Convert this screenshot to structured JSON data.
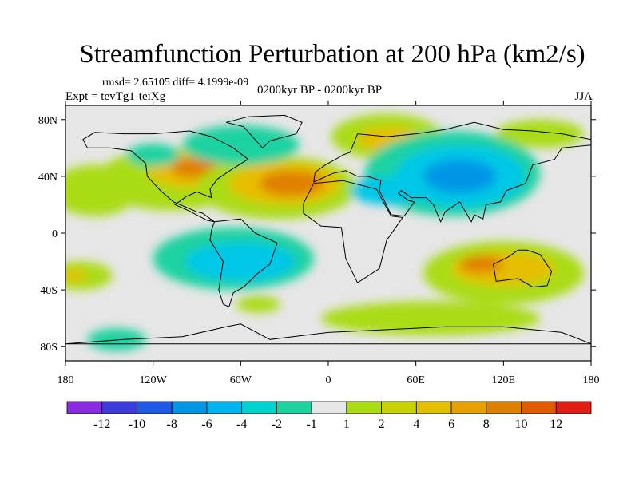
{
  "header": {
    "title": "Streamfunction Perturbation at 200 hPa (km2/s)",
    "stats": "rmsd= 2.65105 diff= 4.1999e-09",
    "period": "0200kyr BP - 0200kyr BP",
    "experiment": "Expt = tevTg1-teiXg",
    "season": "JJA"
  },
  "map": {
    "lon_range": [
      -180,
      180
    ],
    "lat_range": [
      -90,
      90
    ],
    "lon_ticks": [
      {
        "value": -180,
        "label": "180"
      },
      {
        "value": -120,
        "label": "120W"
      },
      {
        "value": -60,
        "label": "60W"
      },
      {
        "value": 0,
        "label": "0"
      },
      {
        "value": 60,
        "label": "60E"
      },
      {
        "value": 120,
        "label": "120E"
      },
      {
        "value": 180,
        "label": "180"
      }
    ],
    "lat_ticks": [
      {
        "value": 80,
        "label": "80N"
      },
      {
        "value": 40,
        "label": "40N"
      },
      {
        "value": 0,
        "label": "0"
      },
      {
        "value": -40,
        "label": "40S"
      },
      {
        "value": -80,
        "label": "80S"
      }
    ],
    "background_color": "#e6e6e6",
    "field_blobs": [
      {
        "lon": -108,
        "lat": 38,
        "rlon": 50,
        "rlat": 22,
        "color": "#aadc14"
      },
      {
        "lon": -95,
        "lat": 44,
        "rlon": 28,
        "rlat": 12,
        "color": "#e6be00"
      },
      {
        "lon": -92,
        "lat": 46,
        "rlon": 16,
        "rlat": 7,
        "color": "#e08000"
      },
      {
        "lon": -35,
        "lat": 32,
        "rlon": 55,
        "rlat": 22,
        "color": "#aadc14"
      },
      {
        "lon": -30,
        "lat": 35,
        "rlon": 38,
        "rlat": 15,
        "color": "#e6be00"
      },
      {
        "lon": -25,
        "lat": 35,
        "rlon": 22,
        "rlat": 9,
        "color": "#e08000"
      },
      {
        "lon": -160,
        "lat": 30,
        "rlon": 30,
        "rlat": 18,
        "color": "#aadc14"
      },
      {
        "lon": -60,
        "lat": 62,
        "rlon": 40,
        "rlat": 14,
        "color": "#1ed2a0"
      },
      {
        "lon": -120,
        "lat": 55,
        "rlon": 18,
        "rlat": 8,
        "color": "#1ed2a0"
      },
      {
        "lon": 40,
        "lat": 68,
        "rlon": 38,
        "rlat": 16,
        "color": "#aadc14"
      },
      {
        "lon": 42,
        "lat": 66,
        "rlon": 22,
        "rlat": 9,
        "color": "#e6be00"
      },
      {
        "lon": 145,
        "lat": 70,
        "rlon": 30,
        "rlat": 10,
        "color": "#aadc14"
      },
      {
        "lon": 85,
        "lat": 42,
        "rlon": 60,
        "rlat": 30,
        "color": "#1ed2a0"
      },
      {
        "lon": 90,
        "lat": 40,
        "rlon": 45,
        "rlat": 22,
        "color": "#00c8e6"
      },
      {
        "lon": 90,
        "lat": 40,
        "rlon": 25,
        "rlat": 12,
        "color": "#0096e6"
      },
      {
        "lon": 40,
        "lat": 30,
        "rlon": 25,
        "rlat": 10,
        "color": "#00c8e6"
      },
      {
        "lon": -65,
        "lat": -18,
        "rlon": 55,
        "rlat": 22,
        "color": "#1ed2a0"
      },
      {
        "lon": -60,
        "lat": -20,
        "rlon": 38,
        "rlat": 14,
        "color": "#00c8e6"
      },
      {
        "lon": -170,
        "lat": -30,
        "rlon": 22,
        "rlat": 10,
        "color": "#aadc14"
      },
      {
        "lon": -175,
        "lat": -30,
        "rlon": 10,
        "rlat": 4,
        "color": "#e6be00"
      },
      {
        "lon": -48,
        "lat": -50,
        "rlon": 15,
        "rlat": 6,
        "color": "#aadc14"
      },
      {
        "lon": 120,
        "lat": -28,
        "rlon": 55,
        "rlat": 22,
        "color": "#aadc14"
      },
      {
        "lon": 120,
        "lat": -25,
        "rlon": 35,
        "rlat": 12,
        "color": "#e6be00"
      },
      {
        "lon": 105,
        "lat": -22,
        "rlon": 15,
        "rlat": 6,
        "color": "#e08000"
      },
      {
        "lon": 70,
        "lat": -60,
        "rlon": 75,
        "rlat": 12,
        "color": "#aadc14"
      },
      {
        "lon": -145,
        "lat": -75,
        "rlon": 20,
        "rlat": 8,
        "color": "#1ed2a0"
      }
    ],
    "landmasses": [
      {
        "name": "North America",
        "coords": [
          [
            -168,
            66
          ],
          [
            -160,
            71
          ],
          [
            -140,
            70
          ],
          [
            -120,
            70
          ],
          [
            -95,
            72
          ],
          [
            -80,
            68
          ],
          [
            -65,
            60
          ],
          [
            -55,
            52
          ],
          [
            -66,
            45
          ],
          [
            -76,
            38
          ],
          [
            -81,
            31
          ],
          [
            -80,
            25
          ],
          [
            -90,
            29
          ],
          [
            -97,
            26
          ],
          [
            -105,
            20
          ],
          [
            -96,
            16
          ],
          [
            -83,
            9
          ],
          [
            -78,
            8
          ],
          [
            -86,
            14
          ],
          [
            -90,
            15
          ],
          [
            -106,
            22
          ],
          [
            -115,
            30
          ],
          [
            -124,
            40
          ],
          [
            -125,
            49
          ],
          [
            -135,
            58
          ],
          [
            -150,
            60
          ],
          [
            -165,
            60
          ]
        ]
      },
      {
        "name": "Greenland",
        "coords": [
          [
            -45,
            60
          ],
          [
            -40,
            65
          ],
          [
            -22,
            70
          ],
          [
            -18,
            78
          ],
          [
            -30,
            83
          ],
          [
            -55,
            82
          ],
          [
            -70,
            78
          ],
          [
            -58,
            75
          ],
          [
            -52,
            68
          ]
        ]
      },
      {
        "name": "South America",
        "coords": [
          [
            -78,
            8
          ],
          [
            -60,
            10
          ],
          [
            -50,
            0
          ],
          [
            -35,
            -7
          ],
          [
            -40,
            -22
          ],
          [
            -48,
            -28
          ],
          [
            -58,
            -38
          ],
          [
            -65,
            -42
          ],
          [
            -68,
            -52
          ],
          [
            -72,
            -50
          ],
          [
            -75,
            -40
          ],
          [
            -72,
            -20
          ],
          [
            -81,
            -5
          ],
          [
            -80,
            2
          ]
        ]
      },
      {
        "name": "Africa",
        "coords": [
          [
            -17,
            21
          ],
          [
            -10,
            35
          ],
          [
            10,
            37
          ],
          [
            33,
            31
          ],
          [
            43,
            12
          ],
          [
            51,
            11
          ],
          [
            40,
            -5
          ],
          [
            35,
            -25
          ],
          [
            20,
            -35
          ],
          [
            12,
            -18
          ],
          [
            9,
            4
          ],
          [
            -5,
            5
          ],
          [
            -17,
            14
          ]
        ]
      },
      {
        "name": "Eurasia",
        "coords": [
          [
            -10,
            36
          ],
          [
            -9,
            43
          ],
          [
            -2,
            48
          ],
          [
            5,
            52
          ],
          [
            10,
            55
          ],
          [
            15,
            57
          ],
          [
            20,
            70
          ],
          [
            40,
            68
          ],
          [
            60,
            70
          ],
          [
            80,
            73
          ],
          [
            100,
            78
          ],
          [
            120,
            73
          ],
          [
            140,
            72
          ],
          [
            160,
            70
          ],
          [
            180,
            66
          ],
          [
            180,
            62
          ],
          [
            160,
            60
          ],
          [
            155,
            52
          ],
          [
            140,
            48
          ],
          [
            135,
            35
          ],
          [
            122,
            30
          ],
          [
            118,
            22
          ],
          [
            108,
            20
          ],
          [
            106,
            10
          ],
          [
            100,
            13
          ],
          [
            98,
            8
          ],
          [
            90,
            22
          ],
          [
            80,
            15
          ],
          [
            77,
            8
          ],
          [
            72,
            20
          ],
          [
            67,
            25
          ],
          [
            57,
            25
          ],
          [
            50,
            30
          ],
          [
            48,
            28
          ],
          [
            55,
            23
          ],
          [
            59,
            22
          ],
          [
            52,
            12
          ],
          [
            43,
            13
          ],
          [
            35,
            30
          ],
          [
            36,
            37
          ],
          [
            27,
            40
          ],
          [
            20,
            40
          ],
          [
            12,
            44
          ],
          [
            3,
            42
          ]
        ]
      },
      {
        "name": "Australia",
        "coords": [
          [
            113,
            -22
          ],
          [
            115,
            -34
          ],
          [
            130,
            -32
          ],
          [
            140,
            -38
          ],
          [
            150,
            -37
          ],
          [
            153,
            -27
          ],
          [
            145,
            -15
          ],
          [
            136,
            -12
          ],
          [
            130,
            -12
          ],
          [
            123,
            -17
          ]
        ]
      },
      {
        "name": "Antarctica",
        "coords": [
          [
            -180,
            -78
          ],
          [
            -140,
            -75
          ],
          [
            -100,
            -73
          ],
          [
            -70,
            -66
          ],
          [
            -60,
            -64
          ],
          [
            -40,
            -75
          ],
          [
            0,
            -70
          ],
          [
            40,
            -68
          ],
          [
            80,
            -66
          ],
          [
            120,
            -66
          ],
          [
            160,
            -70
          ],
          [
            180,
            -78
          ]
        ]
      }
    ]
  },
  "colorbar": {
    "colors": [
      "#8a2be2",
      "#3c3cdc",
      "#1e5ae6",
      "#0096e6",
      "#00b4f0",
      "#00d2d2",
      "#1ed2a0",
      "#e6e6e6",
      "#aadc14",
      "#c8d200",
      "#e6be00",
      "#e6a000",
      "#e08000",
      "#e05a00",
      "#e01e14"
    ],
    "labels": [
      "-12",
      "-10",
      "-8",
      "-6",
      "-4",
      "-2",
      "-1",
      "1",
      "2",
      "4",
      "6",
      "8",
      "10",
      "12"
    ]
  }
}
